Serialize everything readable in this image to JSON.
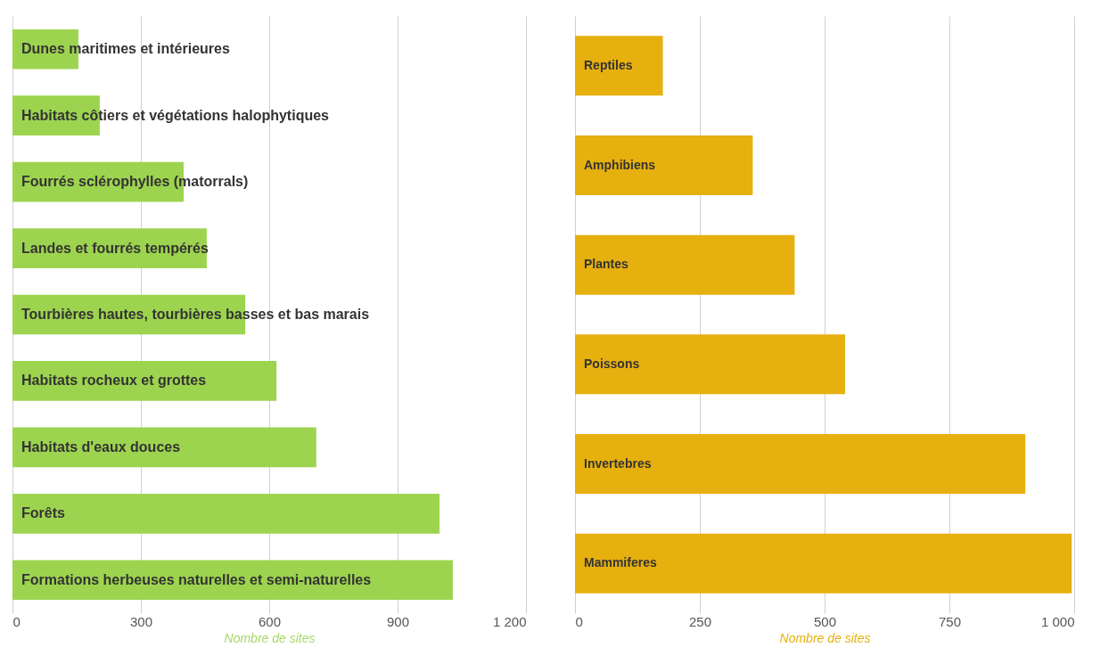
{
  "chart_data": [
    {
      "type": "bar",
      "orientation": "horizontal",
      "xlabel": "Nombre de sites",
      "categories": [
        "Dunes maritimes et intérieures",
        "Habitats côtiers et végétations halophytiques",
        "Fourrés sclérophylles (matorrals)",
        "Landes et fourrés tempérés",
        "Tourbières hautes, tourbières basses et bas marais",
        "Habitats rocheux et grottes",
        "Habitats d'eaux douces",
        "Forêts",
        "Formations herbeuses naturelles et semi-naturelles"
      ],
      "series": [
        {
          "color": "#9dd44f",
          "values": [
            154,
            204,
            400,
            454,
            544,
            617,
            710,
            998,
            1029
          ]
        }
      ],
      "xlim": [
        0,
        1200
      ],
      "xticks": [
        0,
        300,
        600,
        900,
        {
          "value": 1200,
          "label": "1 200"
        }
      ],
      "grid": "x",
      "tick_labels": "x"
    },
    {
      "type": "bar",
      "orientation": "horizontal",
      "xlabel": "Nombre de sites",
      "categories": [
        "Reptiles",
        "Amphibiens",
        "Plantes",
        "Poissons",
        "Invertebres",
        "Mammiferes"
      ],
      "series": [
        {
          "color": "#e6b00f",
          "values": [
            176,
            356,
            440,
            541,
            902,
            995
          ]
        }
      ],
      "xlim": [
        0,
        1000
      ],
      "xticks": [
        0,
        250,
        500,
        750,
        {
          "value": 1000,
          "label": "1 000"
        }
      ],
      "grid": "x",
      "tick_labels": "x"
    }
  ]
}
